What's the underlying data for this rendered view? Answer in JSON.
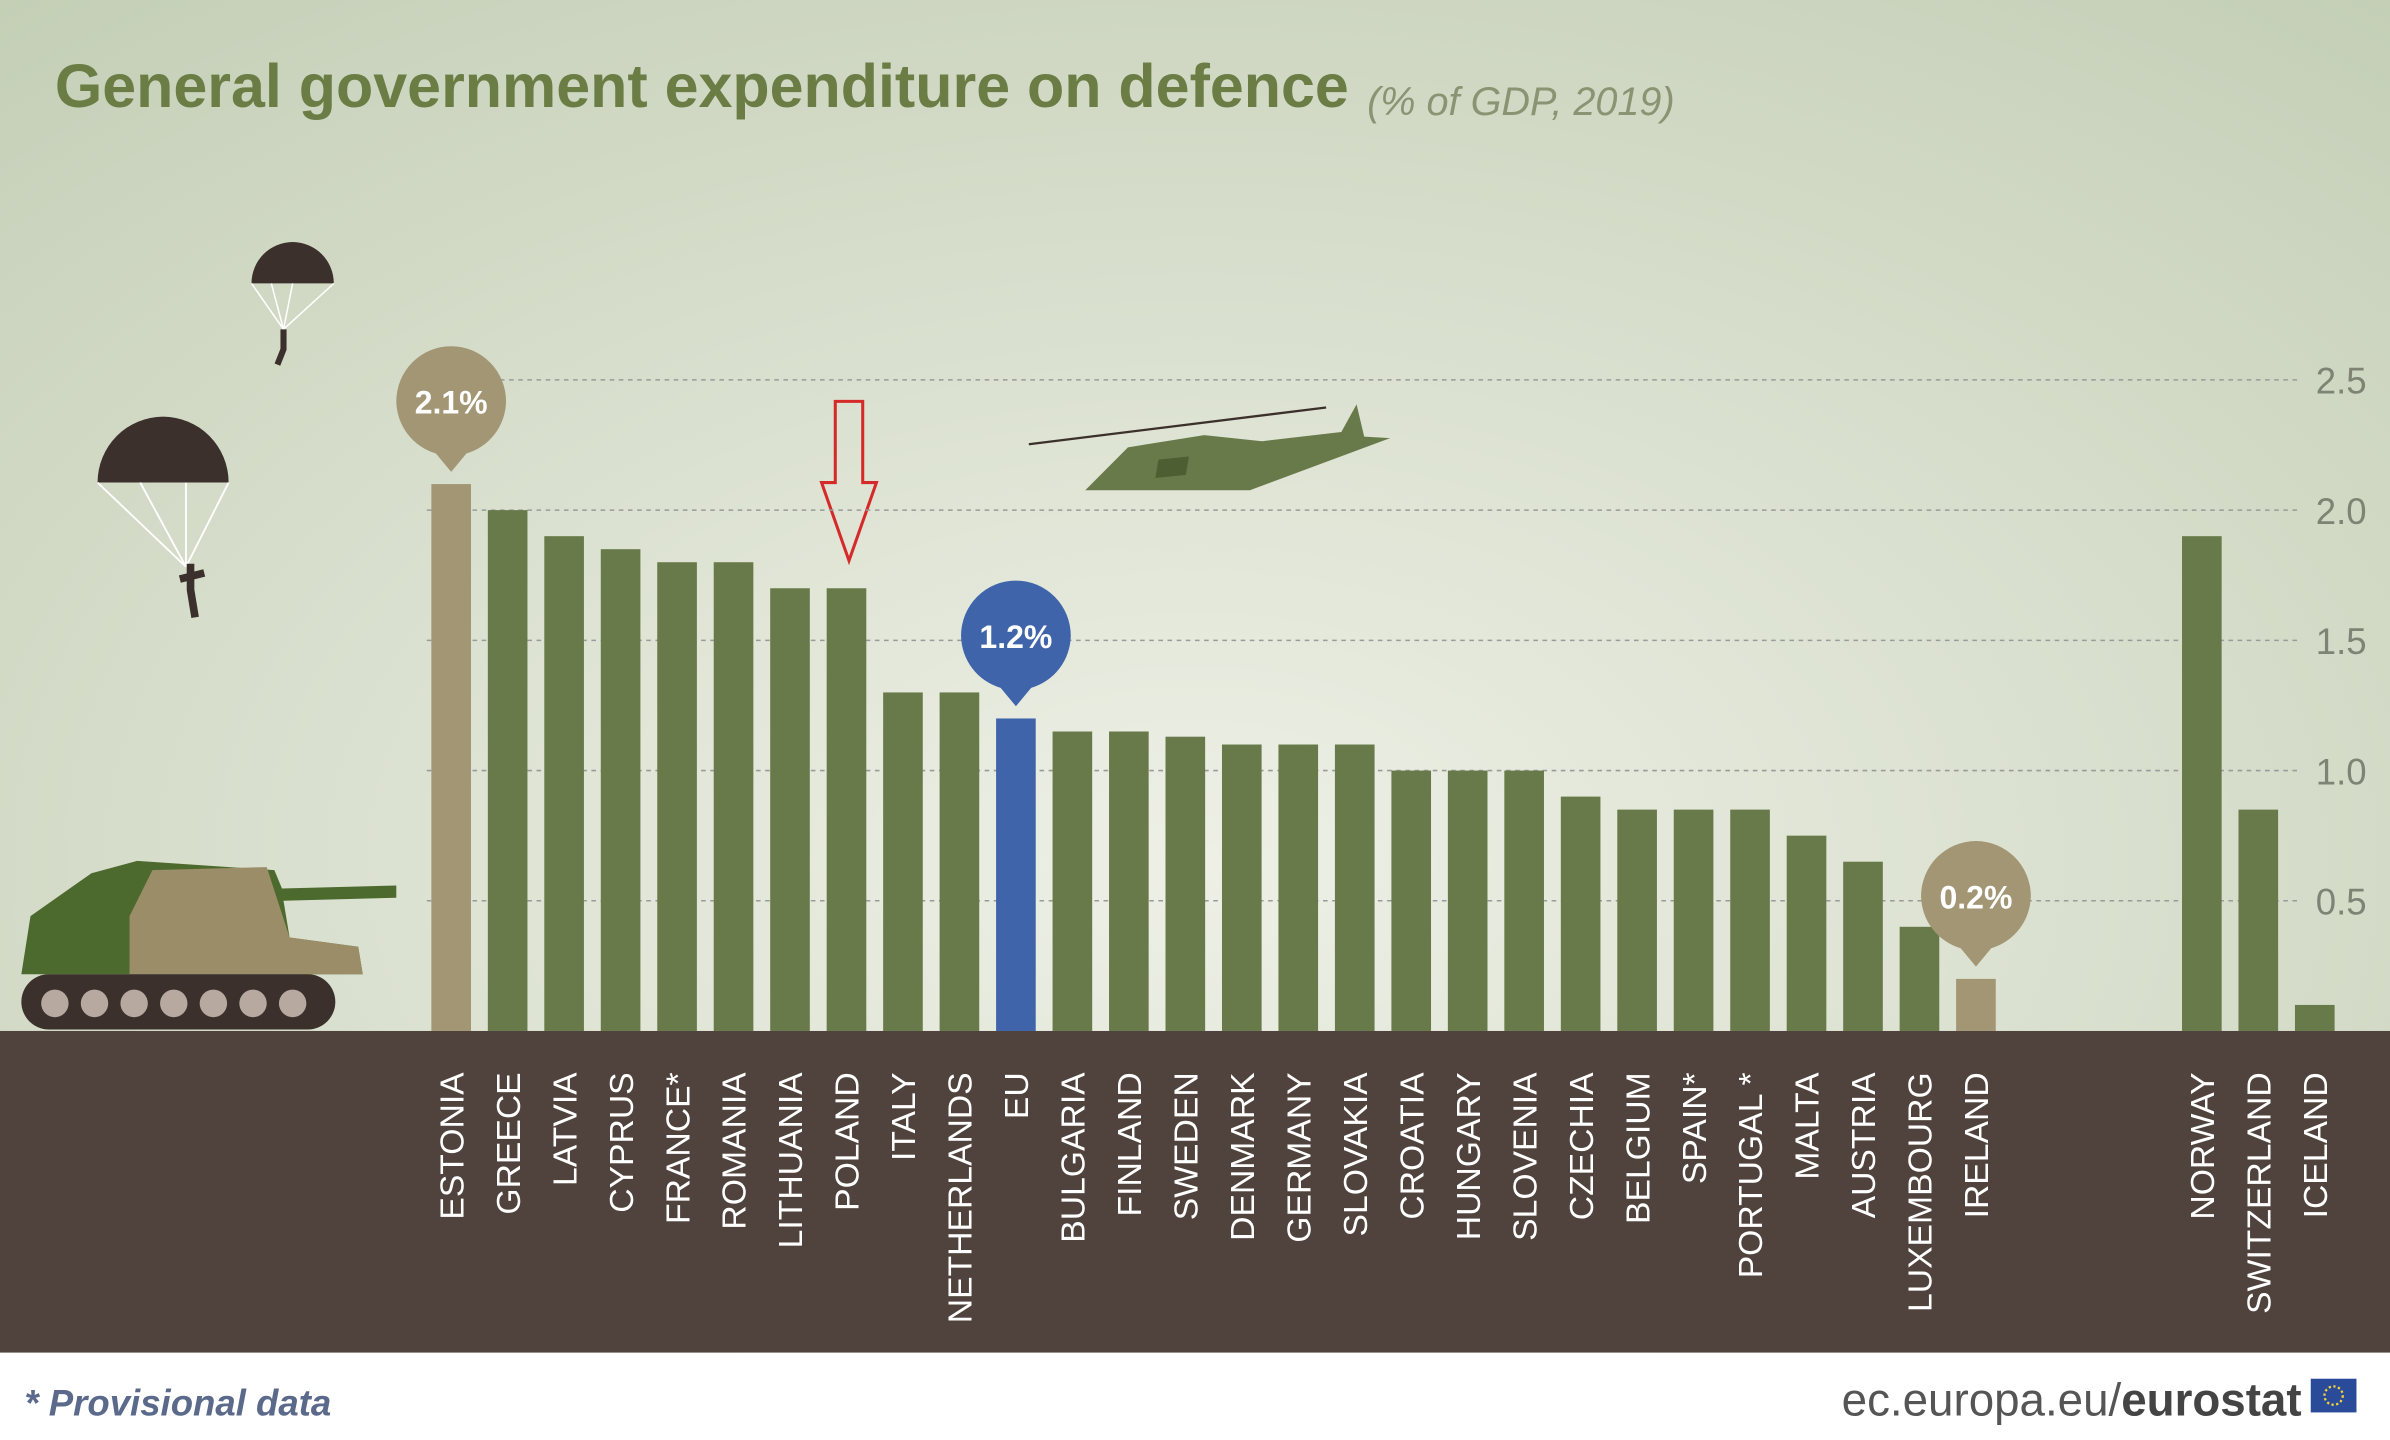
{
  "chart_data": {
    "type": "bar",
    "title": "General government expenditure on defence",
    "subtitle": "(% of GDP, 2019)",
    "categories": [
      "ESTONIA",
      "GREECE",
      "LATVIA",
      "CYPRUS",
      "FRANCE*",
      "ROMANIA",
      "LITHUANIA",
      "POLAND",
      "ITALY",
      "NETHERLANDS",
      "EU",
      "BULGARIA",
      "FINLAND",
      "SWEDEN",
      "DENMARK",
      "GERMANY",
      "SLOVAKIA",
      "CROATIA",
      "HUNGARY",
      "SLOVENIA",
      "CZECHIA",
      "BELGIUM",
      "SPAIN*",
      "PORTUGAL *",
      "MALTA",
      "AUSTRIA",
      "LUXEMBOURG",
      "IRELAND",
      "NORWAY",
      "SWITZERLAND",
      "ICELAND"
    ],
    "values": [
      2.1,
      2.0,
      1.9,
      1.85,
      1.8,
      1.8,
      1.7,
      1.7,
      1.3,
      1.3,
      1.2,
      1.15,
      1.15,
      1.13,
      1.1,
      1.1,
      1.1,
      1.0,
      1.0,
      1.0,
      0.9,
      0.85,
      0.85,
      0.85,
      0.75,
      0.65,
      0.4,
      0.2,
      1.9,
      0.85,
      0.1
    ],
    "value_labels": [
      "2.1%",
      null,
      null,
      null,
      null,
      null,
      null,
      null,
      null,
      null,
      "1.2%",
      null,
      null,
      null,
      null,
      null,
      null,
      null,
      null,
      null,
      null,
      null,
      null,
      null,
      null,
      null,
      null,
      "0.2%",
      null,
      null,
      null
    ],
    "color": "#687a4a",
    "colors": [
      "#a29674",
      "#687a4a",
      "#687a4a",
      "#687a4a",
      "#687a4a",
      "#687a4a",
      "#687a4a",
      "#687a4a",
      "#687a4a",
      "#687a4a",
      "#3f64aa",
      "#687a4a",
      "#687a4a",
      "#687a4a",
      "#687a4a",
      "#687a4a",
      "#687a4a",
      "#687a4a",
      "#687a4a",
      "#687a4a",
      "#687a4a",
      "#687a4a",
      "#687a4a",
      "#687a4a",
      "#687a4a",
      "#687a4a",
      "#687a4a",
      "#a29674",
      "#687a4a",
      "#687a4a",
      "#687a4a"
    ],
    "ylim": [
      0,
      2.5
    ],
    "yticks": [
      0.5,
      {
        "value": 1,
        "label": "1.0"
      },
      1.5,
      {
        "value": 2,
        "label": "2.0"
      },
      2.5
    ],
    "grid": true,
    "footnote": "* Provisional data",
    "source": "ec.europa.eu/",
    "brand": "eurostat"
  }
}
